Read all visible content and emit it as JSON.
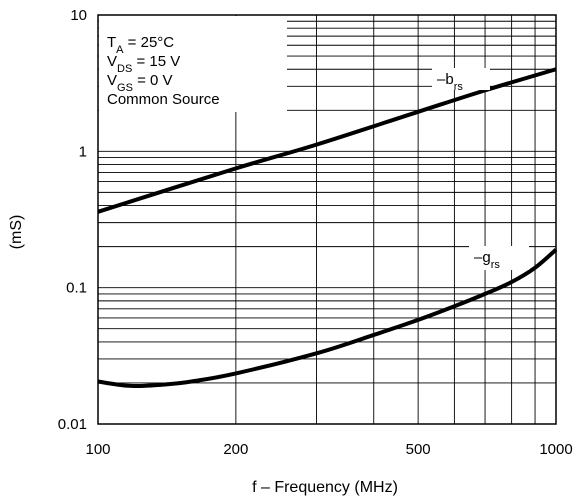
{
  "chart_data": {
    "type": "line",
    "title": "",
    "xlabel": "f – Frequency (MHz)",
    "ylabel": "(mS)",
    "xscale": "log",
    "yscale": "log",
    "xlim": [
      100,
      1000
    ],
    "ylim": [
      0.01,
      10
    ],
    "grid": true,
    "x_tick_labels": [
      "100",
      "200",
      "500",
      "1000"
    ],
    "x_ticks": [
      100,
      200,
      500,
      1000
    ],
    "y_tick_labels": [
      "0.01",
      "0.1",
      "1",
      "10"
    ],
    "y_ticks": [
      0.01,
      0.1,
      1,
      10
    ],
    "conditions": {
      "ta": {
        "prefix": "T",
        "sub": "A",
        "value": " = 25°C"
      },
      "vds": {
        "prefix": "V",
        "sub": "DS",
        "value": " = 15 V"
      },
      "vgs": {
        "prefix": "V",
        "sub": "GS",
        "value": " = 0 V"
      },
      "config": "Common Source"
    },
    "series": [
      {
        "label_main": "–b",
        "label_sub": "rs",
        "x": [
          100,
          200,
          300,
          500,
          700,
          1000
        ],
        "y": [
          0.36,
          0.75,
          1.12,
          1.95,
          2.8,
          4.0
        ]
      },
      {
        "label_main": "–g",
        "label_sub": "rs",
        "x": [
          100,
          110,
          120,
          140,
          160,
          200,
          300,
          400,
          500,
          600,
          700,
          800,
          900,
          1000
        ],
        "y": [
          0.0205,
          0.0195,
          0.019,
          0.0195,
          0.0205,
          0.0235,
          0.033,
          0.045,
          0.058,
          0.073,
          0.09,
          0.11,
          0.14,
          0.19
        ]
      }
    ]
  }
}
